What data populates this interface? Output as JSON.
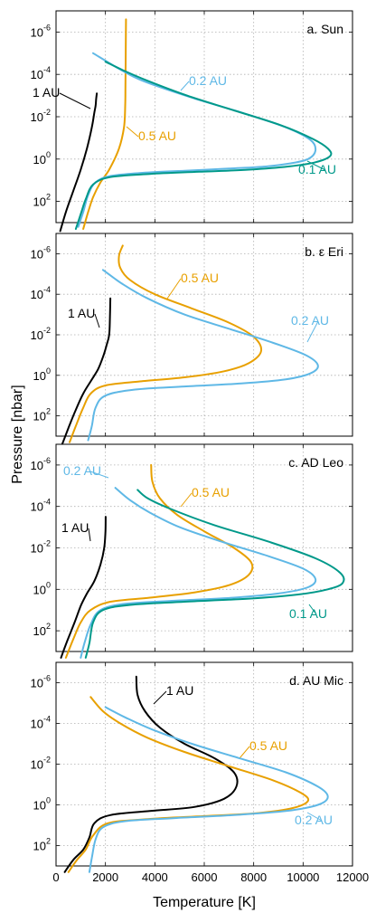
{
  "figure": {
    "xlabel": "Temperature [K]",
    "ylabel": "Pressure [nbar]"
  },
  "colors": {
    "1 AU": "#000000",
    "0.5 AU": "#e8a000",
    "0.2 AU": "#5fb8e6",
    "0.1 AU": "#00998a"
  },
  "chart_data": [
    {
      "type": "line",
      "title": "a. Sun",
      "xlim": [
        0,
        12000
      ],
      "ylim_exponent": [
        3,
        -7
      ],
      "x_ticks": [
        "0",
        "2000",
        "4000",
        "6000",
        "8000",
        "10000",
        "12000"
      ],
      "x_ticks_shown": false,
      "y_ticks": [
        {
          "base": "10",
          "exp": "-6"
        },
        {
          "base": "10",
          "exp": "-4"
        },
        {
          "base": "10",
          "exp": "-2"
        },
        {
          "base": "10",
          "exp": "0"
        },
        {
          "base": "10",
          "exp": "2"
        }
      ],
      "series": [
        {
          "name": "1 AU",
          "label": "1 AU",
          "temperature": [
            170,
            400,
            700,
            1000,
            1250,
            1450,
            1550,
            1600,
            1620,
            1650
          ],
          "pressure_exp": [
            3.4,
            2.5,
            1.5,
            0.5,
            -0.5,
            -1.5,
            -2.2,
            -2.5,
            -2.8,
            -3.1
          ]
        },
        {
          "name": "0.5 AU",
          "label": "0.5 AU",
          "temperature": [
            1100,
            1300,
            1500,
            1800,
            2150,
            2550,
            2750,
            2800,
            2810,
            2820,
            2830
          ],
          "pressure_exp": [
            3.3,
            2.5,
            1.8,
            1.1,
            0.5,
            -0.5,
            -1.5,
            -2.5,
            -3.5,
            -5.0,
            -6.6
          ]
        },
        {
          "name": "0.2 AU",
          "label": "0.2 AU",
          "temperature": [
            900,
            1100,
            1300,
            1600,
            2200,
            3500,
            5200,
            7000,
            8500,
            9500,
            10200,
            10500,
            10300,
            9300,
            7500,
            5500,
            3500,
            2500,
            1500
          ],
          "pressure_exp": [
            3.2,
            2.5,
            1.7,
            1.1,
            0.8,
            0.65,
            0.55,
            0.45,
            0.35,
            0.2,
            0.0,
            -0.4,
            -0.9,
            -1.5,
            -2.2,
            -2.9,
            -3.7,
            -4.3,
            -5.0
          ]
        },
        {
          "name": "0.1 AU",
          "label": "0.1 AU",
          "temperature": [
            800,
            1000,
            1200,
            1500,
            2200,
            3800,
            5800,
            7800,
            9400,
            10500,
            11100,
            11000,
            10400,
            9100,
            7200,
            5300,
            3700,
            2700,
            2000
          ],
          "pressure_exp": [
            3.3,
            2.6,
            1.9,
            1.2,
            0.85,
            0.7,
            0.6,
            0.5,
            0.35,
            0.15,
            -0.15,
            -0.5,
            -0.95,
            -1.6,
            -2.3,
            -3.0,
            -3.7,
            -4.2,
            -4.6
          ]
        }
      ]
    },
    {
      "type": "line",
      "title": "b. ε Eri",
      "xlim": [
        0,
        12000
      ],
      "ylim_exponent": [
        3,
        -7
      ],
      "x_ticks": [
        "0",
        "2000",
        "4000",
        "6000",
        "8000",
        "10000",
        "12000"
      ],
      "x_ticks_shown": false,
      "y_ticks": [
        {
          "base": "10",
          "exp": "-6"
        },
        {
          "base": "10",
          "exp": "-4"
        },
        {
          "base": "10",
          "exp": "-2"
        },
        {
          "base": "10",
          "exp": "0"
        },
        {
          "base": "10",
          "exp": "2"
        }
      ],
      "series": [
        {
          "name": "1 AU",
          "label": "1 AU",
          "temperature": [
            250,
            500,
            800,
            1100,
            1400,
            1700,
            1900,
            2050,
            2150,
            2180,
            2200
          ],
          "pressure_exp": [
            3.4,
            2.6,
            1.7,
            0.9,
            0.3,
            -0.3,
            -0.9,
            -1.5,
            -2.0,
            -2.8,
            -3.8
          ]
        },
        {
          "name": "0.5 AU",
          "label": "0.5 AU",
          "temperature": [
            550,
            800,
            1100,
            1400,
            2000,
            3400,
            5200,
            6800,
            7800,
            8300,
            8000,
            7000,
            5500,
            4000,
            3000,
            2600,
            2550,
            2700
          ],
          "pressure_exp": [
            3.3,
            2.5,
            1.6,
            0.9,
            0.5,
            0.3,
            0.1,
            -0.2,
            -0.6,
            -1.2,
            -1.9,
            -2.6,
            -3.3,
            -4.0,
            -4.7,
            -5.3,
            -5.9,
            -6.4
          ]
        },
        {
          "name": "0.2 AU",
          "label": "0.2 AU",
          "temperature": [
            1300,
            1450,
            1600,
            2000,
            3200,
            5200,
            7500,
            9300,
            10300,
            10600,
            10100,
            8800,
            7000,
            5200,
            3700,
            2700,
            1900
          ],
          "pressure_exp": [
            3.2,
            2.5,
            1.6,
            1.0,
            0.7,
            0.55,
            0.4,
            0.2,
            -0.1,
            -0.5,
            -1.0,
            -1.6,
            -2.3,
            -3.0,
            -3.8,
            -4.5,
            -5.2
          ]
        }
      ]
    },
    {
      "type": "line",
      "title": "c. AD Leo",
      "xlim": [
        0,
        12000
      ],
      "ylim_exponent": [
        3,
        -7
      ],
      "x_ticks": [
        "0",
        "2000",
        "4000",
        "6000",
        "8000",
        "10000",
        "12000"
      ],
      "x_ticks_shown": false,
      "y_ticks": [
        {
          "base": "10",
          "exp": "-6"
        },
        {
          "base": "10",
          "exp": "-4"
        },
        {
          "base": "10",
          "exp": "-2"
        },
        {
          "base": "10",
          "exp": "0"
        },
        {
          "base": "10",
          "exp": "2"
        }
      ],
      "series": [
        {
          "name": "1 AU",
          "label": "1 AU",
          "temperature": [
            200,
            450,
            750,
            1000,
            1250,
            1550,
            1800,
            1950,
            2000,
            2010
          ],
          "pressure_exp": [
            3.3,
            2.5,
            1.6,
            0.8,
            0.2,
            -0.4,
            -1.2,
            -2.0,
            -2.8,
            -3.5
          ]
        },
        {
          "name": "0.5 AU",
          "label": "0.5 AU",
          "temperature": [
            400,
            700,
            1000,
            1400,
            2200,
            3800,
            5600,
            7000,
            7800,
            7900,
            7200,
            6000,
            4900,
            4200,
            3900,
            3850
          ],
          "pressure_exp": [
            3.3,
            2.4,
            1.6,
            1.0,
            0.6,
            0.4,
            0.15,
            -0.2,
            -0.7,
            -1.3,
            -2.0,
            -2.8,
            -3.6,
            -4.4,
            -5.2,
            -6.0
          ]
        },
        {
          "name": "0.2 AU",
          "label": "0.2 AU",
          "temperature": [
            1000,
            1150,
            1400,
            1800,
            2800,
            4800,
            7200,
            9000,
            10200,
            10500,
            10000,
            8600,
            6700,
            5000,
            3800,
            3000,
            2400
          ],
          "pressure_exp": [
            3.3,
            2.6,
            1.7,
            1.0,
            0.7,
            0.55,
            0.4,
            0.2,
            -0.1,
            -0.5,
            -1.0,
            -1.6,
            -2.3,
            -3.0,
            -3.7,
            -4.3,
            -4.9
          ]
        },
        {
          "name": "0.1 AU",
          "label": "0.1 AU",
          "temperature": [
            1200,
            1350,
            1500,
            1900,
            3000,
            5200,
            7800,
            9800,
            11000,
            11600,
            11500,
            10500,
            8600,
            6400,
            4600,
            3700,
            3300
          ],
          "pressure_exp": [
            3.3,
            2.6,
            1.6,
            1.0,
            0.75,
            0.6,
            0.45,
            0.25,
            0.0,
            -0.3,
            -0.8,
            -1.5,
            -2.3,
            -3.1,
            -3.9,
            -4.4,
            -4.8
          ]
        }
      ]
    },
    {
      "type": "line",
      "title": "d. AU Mic",
      "xlim": [
        0,
        12000
      ],
      "ylim_exponent": [
        3,
        -7
      ],
      "x_ticks": [
        "0",
        "2000",
        "4000",
        "6000",
        "8000",
        "10000",
        "12000"
      ],
      "x_ticks_shown": true,
      "y_ticks": [
        {
          "base": "10",
          "exp": "-6"
        },
        {
          "base": "10",
          "exp": "-4"
        },
        {
          "base": "10",
          "exp": "-2"
        },
        {
          "base": "10",
          "exp": "0"
        },
        {
          "base": "10",
          "exp": "2"
        }
      ],
      "series": [
        {
          "name": "1 AU",
          "label": "1 AU",
          "temperature": [
            350,
            700,
            1100,
            1350,
            1550,
            2200,
            3800,
            5600,
            6800,
            7300,
            7200,
            6400,
            5200,
            4200,
            3600,
            3300,
            3250
          ],
          "pressure_exp": [
            3.3,
            2.7,
            2.2,
            1.6,
            0.9,
            0.5,
            0.3,
            0.1,
            -0.3,
            -0.9,
            -1.6,
            -2.3,
            -3.0,
            -3.8,
            -4.6,
            -5.4,
            -6.3
          ]
        },
        {
          "name": "0.5 AU",
          "label": "0.5 AU",
          "temperature": [
            500,
            850,
            1200,
            1500,
            2100,
            3700,
            6000,
            8200,
            9600,
            10200,
            9900,
            8800,
            7000,
            5200,
            3700,
            2600,
            1900,
            1400
          ],
          "pressure_exp": [
            3.3,
            2.7,
            2.2,
            1.5,
            0.9,
            0.7,
            0.55,
            0.4,
            0.15,
            -0.2,
            -0.6,
            -1.2,
            -1.9,
            -2.6,
            -3.3,
            -4.0,
            -4.6,
            -5.3
          ]
        },
        {
          "name": "0.2 AU",
          "label": "0.2 AU",
          "temperature": [
            1350,
            1450,
            1600,
            1900,
            2800,
            4800,
            7200,
            9300,
            10600,
            11000,
            10600,
            9300,
            7400,
            5500,
            3900,
            2800,
            2000
          ],
          "pressure_exp": [
            3.3,
            2.6,
            1.7,
            1.1,
            0.8,
            0.65,
            0.5,
            0.3,
            0.0,
            -0.4,
            -0.9,
            -1.6,
            -2.3,
            -3.0,
            -3.7,
            -4.3,
            -4.8
          ]
        }
      ]
    }
  ]
}
